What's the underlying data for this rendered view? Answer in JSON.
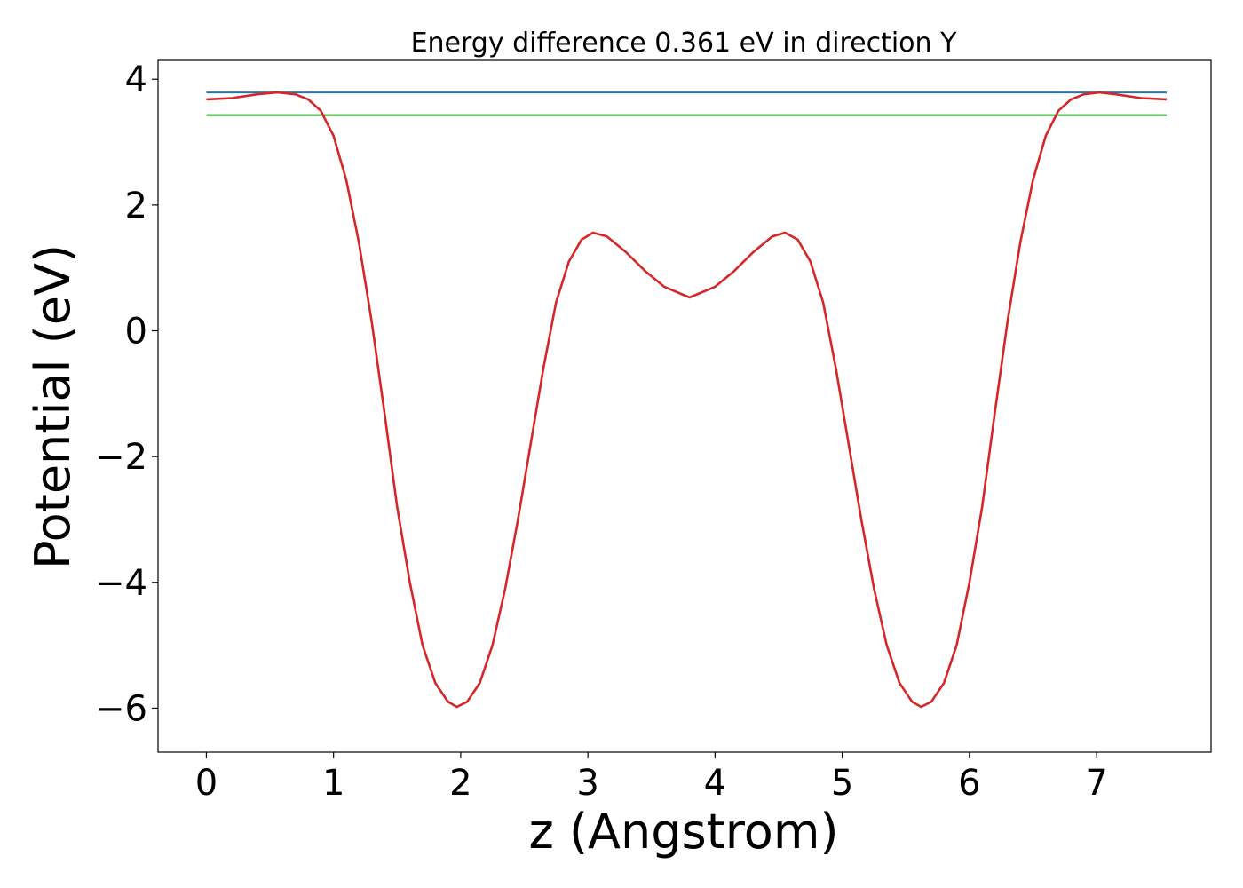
{
  "chart_data": {
    "type": "line",
    "title": "Energy difference 0.361 eV in direction Y",
    "xlabel": "z (Angstrom)",
    "ylabel": "Potential (eV)",
    "xlim": [
      -0.38,
      7.9
    ],
    "ylim": [
      -6.7,
      4.3
    ],
    "xticks": [
      0,
      1,
      2,
      3,
      4,
      5,
      6,
      7
    ],
    "yticks": [
      -6,
      -4,
      -2,
      0,
      2,
      4
    ],
    "ytick_labels": [
      "−6",
      "−4",
      "−2",
      "0",
      "2",
      "4"
    ],
    "grid": false,
    "legend": "none",
    "series": [
      {
        "color": "#d62728",
        "points": [
          [
            0.0,
            3.68
          ],
          [
            0.2,
            3.7
          ],
          [
            0.4,
            3.76
          ],
          [
            0.56,
            3.79
          ],
          [
            0.7,
            3.76
          ],
          [
            0.8,
            3.68
          ],
          [
            0.9,
            3.5
          ],
          [
            1.0,
            3.1
          ],
          [
            1.1,
            2.4
          ],
          [
            1.2,
            1.4
          ],
          [
            1.3,
            0.15
          ],
          [
            1.4,
            -1.3
          ],
          [
            1.5,
            -2.8
          ],
          [
            1.6,
            -4.0
          ],
          [
            1.7,
            -5.0
          ],
          [
            1.8,
            -5.6
          ],
          [
            1.9,
            -5.9
          ],
          [
            1.97,
            -5.98
          ],
          [
            2.05,
            -5.9
          ],
          [
            2.15,
            -5.6
          ],
          [
            2.25,
            -5.0
          ],
          [
            2.35,
            -4.1
          ],
          [
            2.45,
            -3.0
          ],
          [
            2.55,
            -1.8
          ],
          [
            2.65,
            -0.6
          ],
          [
            2.75,
            0.45
          ],
          [
            2.85,
            1.1
          ],
          [
            2.95,
            1.45
          ],
          [
            3.04,
            1.56
          ],
          [
            3.15,
            1.5
          ],
          [
            3.3,
            1.25
          ],
          [
            3.45,
            0.95
          ],
          [
            3.6,
            0.7
          ],
          [
            3.8,
            0.53
          ],
          [
            4.0,
            0.7
          ],
          [
            4.15,
            0.95
          ],
          [
            4.3,
            1.25
          ],
          [
            4.45,
            1.5
          ],
          [
            4.55,
            1.56
          ],
          [
            4.65,
            1.45
          ],
          [
            4.75,
            1.1
          ],
          [
            4.85,
            0.45
          ],
          [
            4.95,
            -0.6
          ],
          [
            5.05,
            -1.8
          ],
          [
            5.15,
            -3.0
          ],
          [
            5.25,
            -4.1
          ],
          [
            5.35,
            -5.0
          ],
          [
            5.45,
            -5.6
          ],
          [
            5.55,
            -5.9
          ],
          [
            5.62,
            -5.98
          ],
          [
            5.7,
            -5.9
          ],
          [
            5.8,
            -5.6
          ],
          [
            5.9,
            -5.0
          ],
          [
            6.0,
            -4.0
          ],
          [
            6.1,
            -2.8
          ],
          [
            6.2,
            -1.3
          ],
          [
            6.3,
            0.15
          ],
          [
            6.4,
            1.4
          ],
          [
            6.5,
            2.4
          ],
          [
            6.6,
            3.1
          ],
          [
            6.7,
            3.5
          ],
          [
            6.8,
            3.68
          ],
          [
            6.9,
            3.76
          ],
          [
            7.02,
            3.79
          ],
          [
            7.15,
            3.76
          ],
          [
            7.35,
            3.7
          ],
          [
            7.55,
            3.68
          ]
        ]
      },
      {
        "color": "#1f77b4",
        "points": [
          [
            0.0,
            3.79
          ],
          [
            7.55,
            3.79
          ]
        ]
      },
      {
        "color": "#2ca02c",
        "points": [
          [
            0.0,
            3.43
          ],
          [
            7.55,
            3.43
          ]
        ]
      }
    ]
  }
}
